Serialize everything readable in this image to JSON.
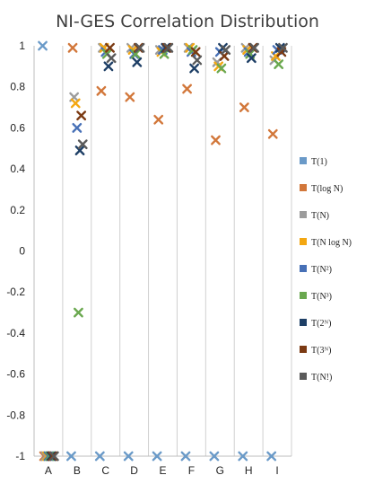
{
  "chart_data": {
    "type": "scatter",
    "title": "NI-GES Correlation Distribution",
    "categories": [
      "A",
      "B",
      "C",
      "D",
      "E",
      "F",
      "G",
      "H",
      "I"
    ],
    "ylim": [
      -1,
      1
    ],
    "yticks": [
      1,
      0.8,
      0.6,
      0.4,
      0.2,
      0,
      -0.2,
      -0.4,
      -0.6,
      -0.8,
      -1
    ],
    "ytick_labels": [
      "1",
      "0.8",
      "0.6",
      "0.4",
      "0.2",
      "0",
      "-0.2",
      "-0.4",
      "-0.6",
      "-0.8",
      "-1"
    ],
    "grid": "vertical lines between categories",
    "legend_position": "right",
    "marker": "x",
    "series": [
      {
        "name": "T(1)",
        "color": "#6a9ac8",
        "values": [
          1.0,
          -1.0,
          -1.0,
          -1.0,
          -1.0,
          -1.0,
          -1.0,
          -1.0,
          -1.0
        ]
      },
      {
        "name": "T(log N)",
        "color": "#d2773a",
        "values": [
          -1.0,
          0.99,
          0.78,
          0.75,
          0.64,
          0.79,
          0.54,
          0.7,
          0.57
        ]
      },
      {
        "name": "T(N)",
        "color": "#9c9c9c",
        "values": [
          -1.0,
          0.75,
          0.99,
          0.99,
          0.98,
          0.99,
          0.92,
          0.99,
          0.93
        ]
      },
      {
        "name": "T(N log N)",
        "color": "#f3a712",
        "values": [
          -1.0,
          0.72,
          0.99,
          0.98,
          0.97,
          0.99,
          0.9,
          0.98,
          0.95
        ]
      },
      {
        "name": "T(N²)",
        "color": "#4770b6",
        "values": [
          -1.0,
          0.6,
          0.97,
          0.96,
          0.98,
          0.97,
          0.97,
          0.97,
          0.98
        ]
      },
      {
        "name": "T(N³)",
        "color": "#6aa84f",
        "values": [
          -1.0,
          -0.3,
          0.96,
          0.96,
          0.96,
          0.98,
          0.89,
          0.96,
          0.91
        ]
      },
      {
        "name": "T(2ᴺ)",
        "color": "#1e3f66",
        "values": [
          -1.0,
          0.49,
          0.9,
          0.92,
          0.99,
          0.89,
          0.99,
          0.94,
          0.99
        ]
      },
      {
        "name": "T(3ᴺ)",
        "color": "#7b3a13",
        "values": [
          -1.0,
          0.66,
          0.99,
          0.99,
          0.99,
          0.97,
          0.95,
          0.99,
          0.97
        ]
      },
      {
        "name": "T(N!)",
        "color": "#5a5a5a",
        "values": [
          -1.0,
          0.52,
          0.94,
          0.99,
          0.99,
          0.93,
          0.98,
          0.99,
          0.99
        ]
      }
    ]
  }
}
